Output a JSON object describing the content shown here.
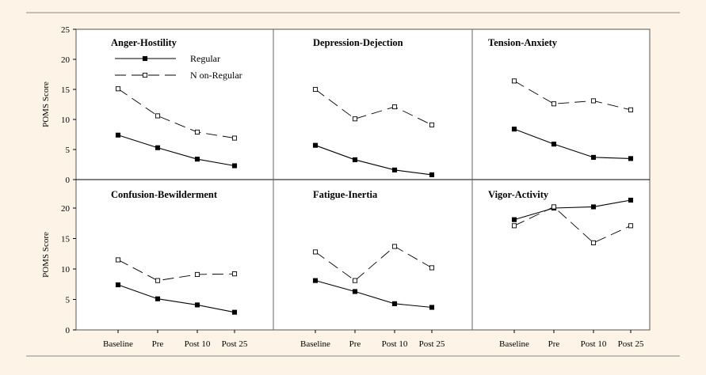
{
  "colors": {
    "background": "#fdf3e7",
    "plot_bg": "#ffffff",
    "ink": "#000000"
  },
  "legend": {
    "regular": {
      "label": "Regular",
      "marker": "filled-square",
      "line": "solid"
    },
    "non_regular": {
      "label": "N on-Regular",
      "marker": "open-square",
      "line": "dashed"
    }
  },
  "y_axis_label": "POMS Score",
  "chart_data": [
    {
      "type": "line",
      "title": "Anger-Hostility",
      "categories": [
        "Baseline",
        "Pre",
        "Post 10",
        "Post 25"
      ],
      "ylim": [
        0,
        25
      ],
      "yticks": [
        0,
        5,
        10,
        15,
        20,
        25
      ],
      "series": [
        {
          "name": "Regular",
          "values": [
            7.4,
            5.3,
            3.4,
            2.3
          ]
        },
        {
          "name": "N on-Regular",
          "values": [
            15.1,
            10.6,
            7.9,
            6.9
          ]
        }
      ]
    },
    {
      "type": "line",
      "title": "Depression-Dejection",
      "categories": [
        "Baseline",
        "Pre",
        "Post 10",
        "Post 25"
      ],
      "ylim": [
        0,
        25
      ],
      "yticks": [
        0,
        5,
        10,
        15,
        20,
        25
      ],
      "series": [
        {
          "name": "Regular",
          "values": [
            5.7,
            3.3,
            1.6,
            0.8
          ]
        },
        {
          "name": "N on-Regular",
          "values": [
            15.0,
            10.1,
            12.1,
            9.1
          ]
        }
      ]
    },
    {
      "type": "line",
      "title": "Tension-Anxiety",
      "categories": [
        "Baseline",
        "Pre",
        "Post 10",
        "Post 25"
      ],
      "ylim": [
        0,
        25
      ],
      "yticks": [
        0,
        5,
        10,
        15,
        20,
        25
      ],
      "series": [
        {
          "name": "Regular",
          "values": [
            8.4,
            5.9,
            3.7,
            3.5
          ]
        },
        {
          "name": "N on-Regular",
          "values": [
            16.4,
            12.6,
            13.1,
            11.6
          ]
        }
      ]
    },
    {
      "type": "line",
      "title": "Confusion-Bewilderment",
      "categories": [
        "Baseline",
        "Pre",
        "Post 10",
        "Post 25"
      ],
      "ylim": [
        0,
        25
      ],
      "yticks": [
        0,
        5,
        10,
        15,
        20
      ],
      "series": [
        {
          "name": "Regular",
          "values": [
            7.4,
            5.1,
            4.1,
            2.9
          ]
        },
        {
          "name": "N on-Regular",
          "values": [
            11.5,
            8.1,
            9.1,
            9.2
          ]
        }
      ]
    },
    {
      "type": "line",
      "title": "Fatigue-Inertia",
      "categories": [
        "Baseline",
        "Pre",
        "Post 10",
        "Post 25"
      ],
      "ylim": [
        0,
        25
      ],
      "yticks": [
        0,
        5,
        10,
        15,
        20
      ],
      "series": [
        {
          "name": "Regular",
          "values": [
            8.1,
            6.3,
            4.3,
            3.7
          ]
        },
        {
          "name": "N on-Regular",
          "values": [
            12.8,
            8.1,
            13.7,
            10.2
          ]
        }
      ]
    },
    {
      "type": "line",
      "title": "Vigor-Activity",
      "categories": [
        "Baseline",
        "Pre",
        "Post 10",
        "Post 25"
      ],
      "ylim": [
        0,
        25
      ],
      "yticks": [
        0,
        5,
        10,
        15,
        20
      ],
      "series": [
        {
          "name": "Regular",
          "values": [
            18.1,
            20.0,
            20.2,
            21.3
          ]
        },
        {
          "name": "N on-Regular",
          "values": [
            17.1,
            20.2,
            14.3,
            17.1
          ]
        }
      ]
    }
  ]
}
